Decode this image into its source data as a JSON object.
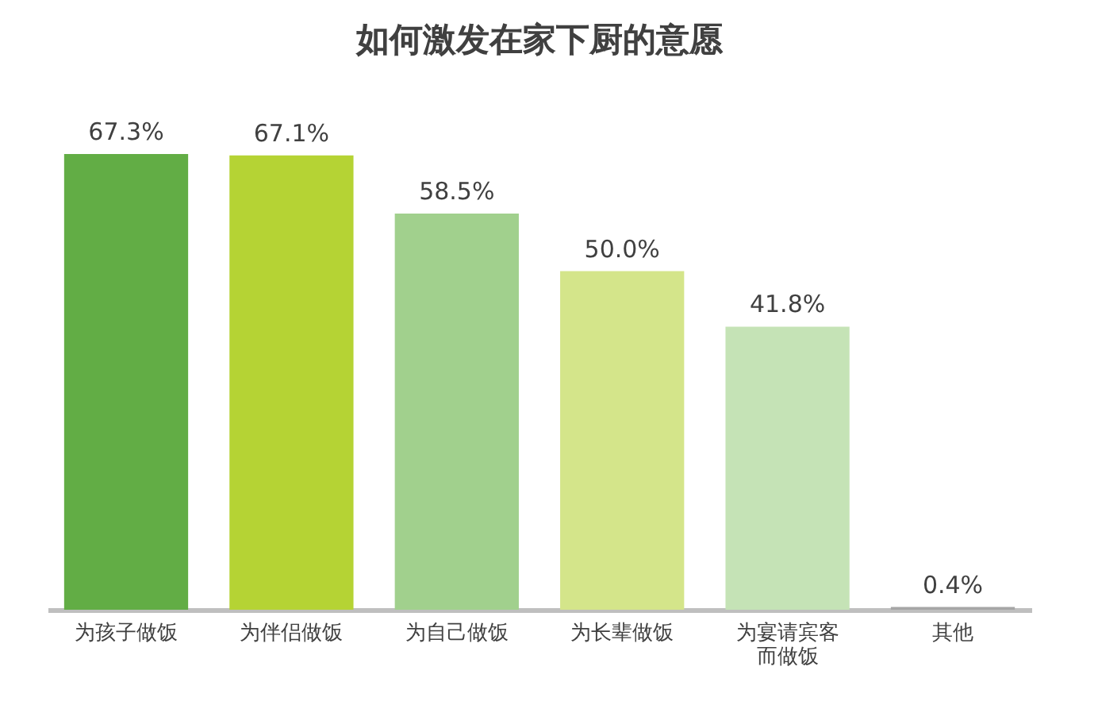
{
  "chart_data": {
    "type": "bar",
    "title": "如何激发在家下厨的意愿",
    "categories": [
      "为孩子做饭",
      "为伴侣做饭",
      "为自己做饭",
      "为长辈做饭",
      "为宴请宾客而做饭",
      "其他"
    ],
    "values": [
      67.3,
      67.1,
      58.5,
      50.0,
      41.8,
      0.4
    ],
    "value_labels": [
      "67.3%",
      "67.1%",
      "58.5%",
      "50.0%",
      "41.8%",
      "0.4%"
    ],
    "colors": [
      "#62ad45",
      "#b5d334",
      "#a1d08d",
      "#d4e58a",
      "#c5e3b6",
      "#a6a6a6"
    ]
  }
}
